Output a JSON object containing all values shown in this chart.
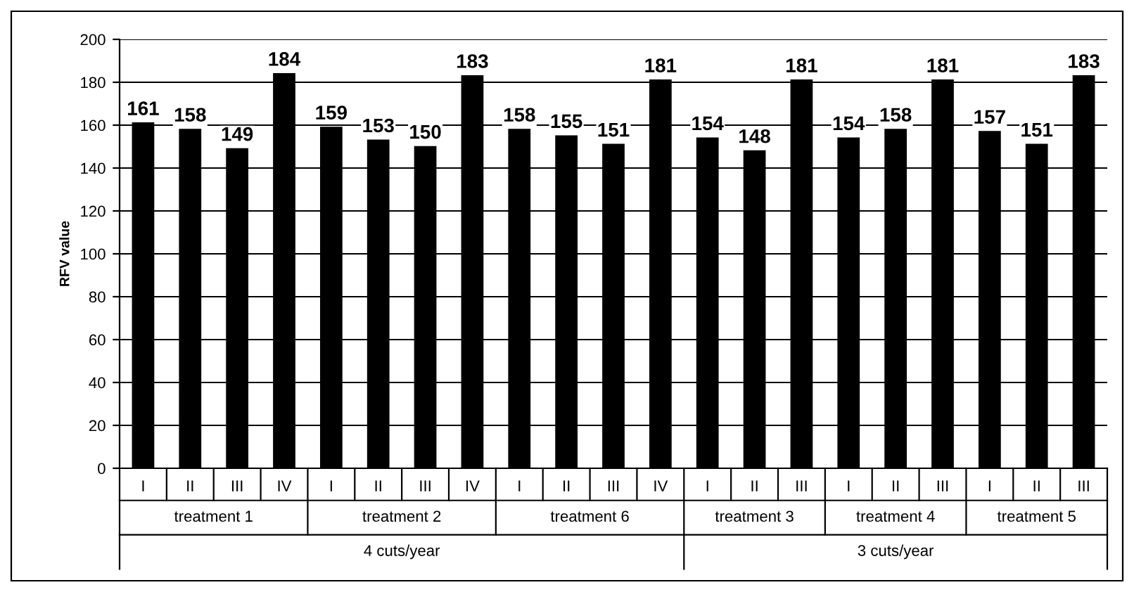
{
  "chart_data": {
    "type": "bar",
    "ylabel": "RFV value",
    "categories": [
      "I",
      "II",
      "III",
      "IV",
      "I",
      "II",
      "III",
      "IV",
      "I",
      "II",
      "III",
      "IV",
      "I",
      "II",
      "III",
      "I",
      "II",
      "III",
      "I",
      "II",
      "III"
    ],
    "values": [
      161,
      158,
      149,
      184,
      159,
      153,
      150,
      183,
      158,
      155,
      151,
      181,
      154,
      148,
      181,
      154,
      158,
      181,
      157,
      151,
      183
    ],
    "color": "#000000",
    "data_labels": true,
    "ylim": [
      0,
      200
    ],
    "yticks": [
      0,
      20,
      40,
      60,
      80,
      100,
      120,
      140,
      160,
      180,
      200
    ],
    "grid": "y",
    "legend": false,
    "annotations": [
      "treatment 1",
      "treatment 2",
      "treatment 6",
      "treatment 3",
      "treatment 4",
      "treatment 5",
      "4 cuts/year",
      "3 cuts/year"
    ]
  }
}
